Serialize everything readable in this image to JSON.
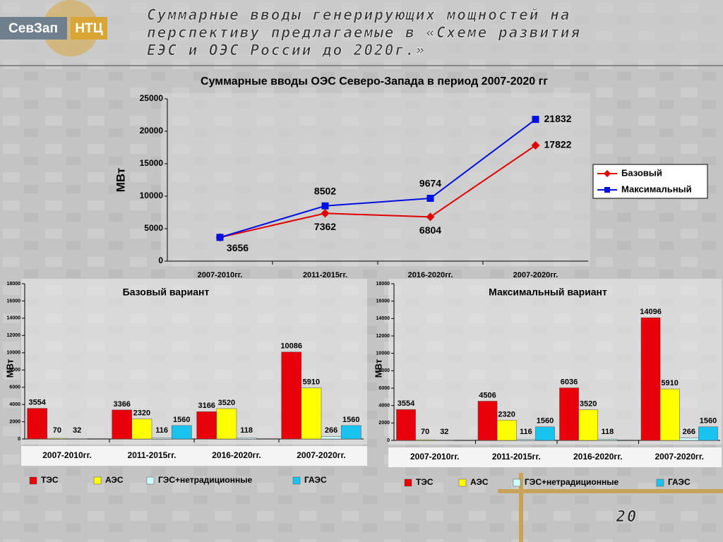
{
  "header": {
    "logo_left": "СевЗап",
    "logo_right": "НТЦ",
    "title_lines": [
      "Суммарные вводы генерирующих мощностей на",
      "перспективу предлагаемые в «Схеме развития",
      "ЕЭС и ОЭС России до 2020г.»"
    ]
  },
  "page_number": "20",
  "chart_data": [
    {
      "type": "line",
      "title": "Суммарные вводы ОЭС Северо-Запада в период 2007-2020 гг",
      "ylabel": "МВт",
      "categories": [
        "2007-2010гг.",
        "2011-2015гг.",
        "2016-2020гг.",
        "2007-2020гг."
      ],
      "series": [
        {
          "name": "Базовый",
          "color": "#e00000",
          "marker": "diamond",
          "values": [
            3656,
            7362,
            6804,
            17822
          ]
        },
        {
          "name": "Максимальный",
          "color": "#0010e0",
          "marker": "square",
          "values": [
            3656,
            8502,
            9674,
            21832
          ]
        }
      ],
      "ylim": [
        0,
        25000
      ],
      "yticks": [
        0,
        5000,
        10000,
        15000,
        20000,
        25000
      ],
      "legend": "right"
    },
    {
      "type": "bar",
      "title": "Базовый вариант",
      "ylabel": "МВт",
      "categories": [
        "2007-2010гг.",
        "2011-2015гг.",
        "2016-2020гг.",
        "2007-2020гг."
      ],
      "series": [
        {
          "name": "ТЭС",
          "color": "#e8000a",
          "values": [
            3554,
            3366,
            3166,
            10086
          ]
        },
        {
          "name": "АЭС",
          "color": "#ffff00",
          "values": [
            70,
            2320,
            3520,
            5910
          ]
        },
        {
          "name": "ГЭС+нетрадиционные",
          "color": "#ccffff",
          "values": [
            32,
            116,
            118,
            266
          ]
        },
        {
          "name": "ГАЭС",
          "color": "#19c3f0",
          "values": [
            null,
            1560,
            null,
            1560
          ]
        }
      ],
      "ylim": [
        0,
        18000
      ],
      "yticks": [
        0,
        2000,
        4000,
        6000,
        8000,
        10000,
        12000,
        14000,
        16000,
        18000
      ],
      "legend": "bottom"
    },
    {
      "type": "bar",
      "title": "Максимальный вариант",
      "ylabel": "МВт",
      "categories": [
        "2007-2010гг.",
        "2011-2015гг.",
        "2016-2020гг.",
        "2007-2020гг."
      ],
      "series": [
        {
          "name": "ТЭС",
          "color": "#e8000a",
          "values": [
            3554,
            4506,
            6036,
            14096
          ]
        },
        {
          "name": "АЭС",
          "color": "#ffff00",
          "values": [
            70,
            2320,
            3520,
            5910
          ]
        },
        {
          "name": "ГЭС+нетрадиционные",
          "color": "#ccffff",
          "values": [
            32,
            116,
            118,
            266
          ]
        },
        {
          "name": "ГАЭС",
          "color": "#19c3f0",
          "values": [
            null,
            1560,
            null,
            1560
          ]
        }
      ],
      "ylim": [
        0,
        18000
      ],
      "yticks": [
        0,
        2000,
        4000,
        6000,
        8000,
        10000,
        12000,
        14000,
        16000,
        18000
      ],
      "legend": "bottom"
    }
  ]
}
